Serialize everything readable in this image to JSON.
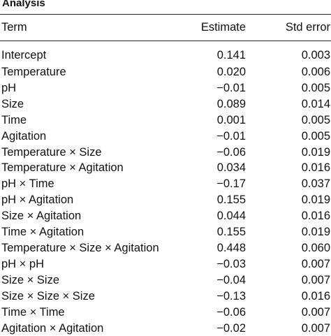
{
  "title": "Analysis",
  "columns": {
    "term": "Term",
    "estimate": "Estimate",
    "std_error": "Std error"
  },
  "rows": [
    {
      "term": "Intercept",
      "estimate": "0.141",
      "std_error": "0.003"
    },
    {
      "term": "Temperature",
      "estimate": "0.020",
      "std_error": "0.006"
    },
    {
      "term": "pH",
      "estimate": "−0.01",
      "std_error": "0.005"
    },
    {
      "term": "Size",
      "estimate": "0.089",
      "std_error": "0.014"
    },
    {
      "term": "Time",
      "estimate": "0.001",
      "std_error": "0.005"
    },
    {
      "term": "Agitation",
      "estimate": "−0.01",
      "std_error": "0.005"
    },
    {
      "term": "Temperature × Size",
      "estimate": "−0.06",
      "std_error": "0.019"
    },
    {
      "term": "Temperature × Agitation",
      "estimate": "0.034",
      "std_error": "0.016"
    },
    {
      "term": "pH × Time",
      "estimate": "−0.17",
      "std_error": "0.037"
    },
    {
      "term": "pH × Agitation",
      "estimate": "0.155",
      "std_error": "0.019"
    },
    {
      "term": "Size × Agitation",
      "estimate": "0.044",
      "std_error": "0.016"
    },
    {
      "term": "Time × Agitation",
      "estimate": "0.155",
      "std_error": "0.019"
    },
    {
      "term": "Temperature × Size × Agitation",
      "estimate": "0.448",
      "std_error": "0.060"
    },
    {
      "term": "pH × pH",
      "estimate": "−0.03",
      "std_error": "0.007"
    },
    {
      "term": "Size × Size",
      "estimate": "−0.04",
      "std_error": "0.007"
    },
    {
      "term": "Size × Size × Size",
      "estimate": "−0.13",
      "std_error": "0.016"
    },
    {
      "term": "Time × Time",
      "estimate": "−0.06",
      "std_error": "0.007"
    },
    {
      "term": "Agitation × Agitation",
      "estimate": "−0.02",
      "std_error": "0.007"
    }
  ]
}
